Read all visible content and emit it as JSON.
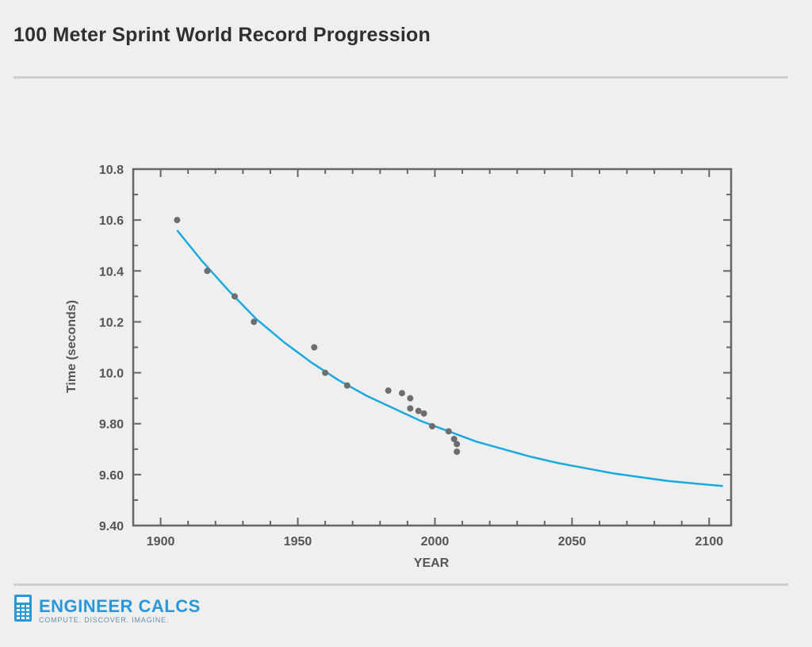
{
  "header": {
    "title": "100 Meter Sprint World Record Progression"
  },
  "brand": {
    "name": "ENGINEER CALCS",
    "tagline": "COMPUTE. DISCOVER. IMAGINE.",
    "icon": "calculator-icon"
  },
  "colors": {
    "curve": "#1aa9df",
    "points": "#6d6d6d",
    "axis": "#666666",
    "brand": "#2a97d8"
  },
  "chart_data": {
    "type": "scatter",
    "title": "100 Meter Sprint World Record Progression",
    "xlabel": "YEAR",
    "ylabel": "Time (seconds)",
    "xlim": [
      1890,
      2108
    ],
    "ylim": [
      9.4,
      10.8
    ],
    "x_ticks": [
      1900,
      1950,
      2000,
      2050,
      2100
    ],
    "x_tick_labels": [
      "1900",
      "1950",
      "2000",
      "2050",
      "2100"
    ],
    "y_ticks": [
      9.4,
      9.6,
      9.8,
      10.0,
      10.2,
      10.4,
      10.6,
      10.8
    ],
    "y_tick_labels": [
      "9.40",
      "9.60",
      "9.80",
      "10.0",
      "10.2",
      "10.4",
      "10.6",
      "10.8"
    ],
    "grid": false,
    "series": [
      {
        "type": "scatter",
        "x": [
          1906,
          1917,
          1927,
          1934,
          1956,
          1960,
          1968,
          1983,
          1988,
          1991,
          1991,
          1994,
          1996,
          1999,
          2005,
          2007,
          2008,
          2008
        ],
        "y": [
          10.6,
          10.4,
          10.3,
          10.2,
          10.1,
          10.0,
          9.95,
          9.93,
          9.92,
          9.9,
          9.86,
          9.85,
          9.84,
          9.79,
          9.77,
          9.74,
          9.72,
          9.69
        ]
      },
      {
        "type": "line",
        "x": [
          1906,
          1915,
          1925,
          1935,
          1945,
          1955,
          1965,
          1975,
          1985,
          1995,
          2005,
          2015,
          2025,
          2035,
          2045,
          2055,
          2065,
          2075,
          2085,
          2095,
          2105
        ],
        "y": [
          10.56,
          10.44,
          10.32,
          10.21,
          10.12,
          10.04,
          9.97,
          9.91,
          9.86,
          9.81,
          9.77,
          9.73,
          9.7,
          9.67,
          9.645,
          9.625,
          9.605,
          9.59,
          9.575,
          9.565,
          9.555
        ]
      }
    ]
  }
}
